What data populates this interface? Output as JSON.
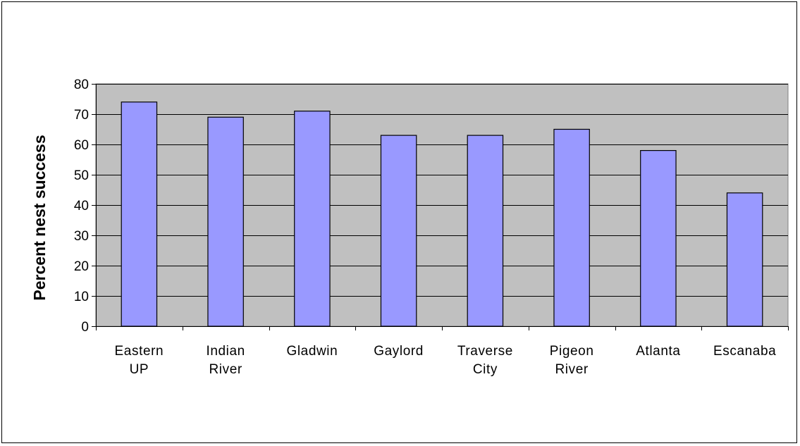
{
  "chart_data": {
    "type": "bar",
    "title": "",
    "xlabel": "",
    "ylabel": "Percent nest success",
    "ylim": [
      0,
      80
    ],
    "yticks": [
      0,
      10,
      20,
      30,
      40,
      50,
      60,
      70,
      80
    ],
    "grid": true,
    "legend": "none",
    "categories": [
      [
        "Eastern",
        "UP"
      ],
      [
        "Indian",
        "River"
      ],
      [
        "Gladwin"
      ],
      [
        "Gaylord"
      ],
      [
        "Traverse",
        "City"
      ],
      [
        "Pigeon",
        "River"
      ],
      [
        "Atlanta"
      ],
      [
        "Escanaba"
      ]
    ],
    "values": [
      74,
      69,
      71,
      63,
      63,
      65,
      58,
      44
    ],
    "colors": {
      "bar": "#9999ff",
      "plot_background": "#c0c0c0",
      "gridline": "#000000",
      "axis": "#000000"
    }
  }
}
